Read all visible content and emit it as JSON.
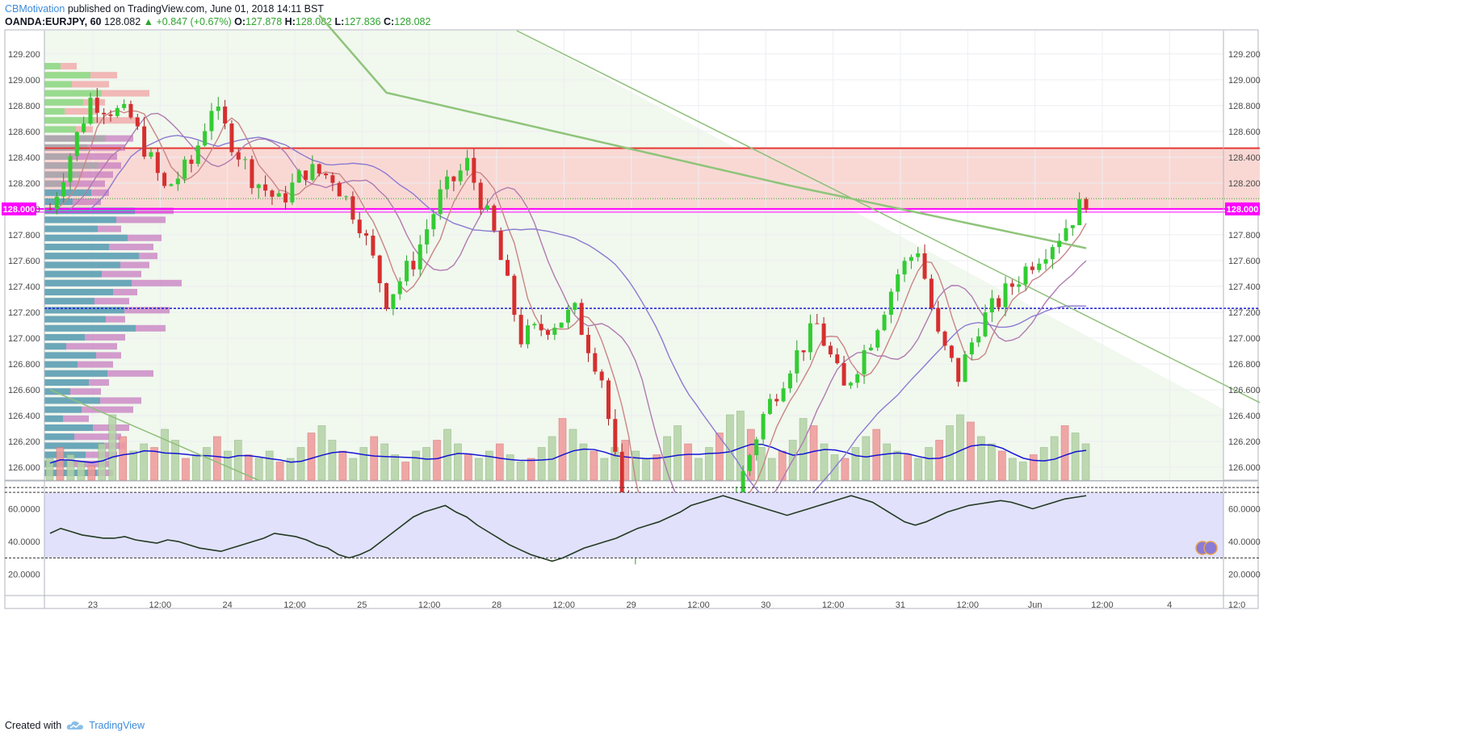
{
  "header": {
    "author": "CBMotivation",
    "published_text": "published on TradingView.com, June 01, 2018 14:11 BST"
  },
  "symbol": {
    "name": "OANDA:EURJPY, 60",
    "last": "128.082",
    "change": "+0.847 (+0.67%)",
    "o_label": "O:",
    "o_value": "127.878",
    "h_label": "H:",
    "h_value": "128.082",
    "l_label": "L:",
    "l_value": "127.836",
    "c_label": "C:",
    "c_value": "128.082"
  },
  "footer": {
    "created_with": "Created with",
    "brand": "TradingView"
  },
  "colors": {
    "up": "#33cc33",
    "down": "#d62f2f",
    "resistance_zone": "#f9d8d4",
    "resistance_line": "#e53935",
    "price_level_line": "#ff00ff",
    "support_line": "#1a1ad6",
    "trend_line": "#8fbf7a",
    "rsi_band": "#e1e1fb",
    "volume_ma": "#1414d6"
  },
  "chart_data": [
    {
      "type": "candlestick",
      "symbol": "OANDA:EURJPY",
      "interval": "60",
      "x_ticks": [
        "23",
        "12:00",
        "24",
        "12:00",
        "25",
        "12:00",
        "28",
        "12:00",
        "29",
        "12:00",
        "30",
        "12:00",
        "31",
        "12:00",
        "Jun",
        "12:00",
        "4",
        "12:0"
      ],
      "y_ticks": [
        "129.200",
        "129.000",
        "128.800",
        "128.600",
        "128.400",
        "128.200",
        "128.000",
        "127.800",
        "127.600",
        "127.400",
        "127.200",
        "127.000",
        "126.800",
        "126.600",
        "126.400",
        "126.200",
        "126.000"
      ],
      "ylim": [
        125.9,
        129.38
      ],
      "price_label": "128.000",
      "levels": {
        "resistance_zone": [
          128.0,
          128.47
        ],
        "resistance": 128.47,
        "marked_price": 128.0,
        "support": 127.23,
        "last_dotted": 128.08
      },
      "grid": true,
      "ohlc_keypoints": [
        {
          "x": 0,
          "y": 128.0
        },
        {
          "x": 6,
          "y": 128.85
        },
        {
          "x": 12,
          "y": 128.7
        },
        {
          "x": 17,
          "y": 128.15
        },
        {
          "x": 21,
          "y": 128.35
        },
        {
          "x": 24,
          "y": 128.8
        },
        {
          "x": 30,
          "y": 128.25
        },
        {
          "x": 34,
          "y": 128.05
        },
        {
          "x": 38,
          "y": 128.3
        },
        {
          "x": 42,
          "y": 128.25
        },
        {
          "x": 46,
          "y": 127.9
        },
        {
          "x": 50,
          "y": 127.3
        },
        {
          "x": 54,
          "y": 127.6
        },
        {
          "x": 58,
          "y": 128.1
        },
        {
          "x": 62,
          "y": 128.35
        },
        {
          "x": 66,
          "y": 127.8
        },
        {
          "x": 70,
          "y": 127.0
        },
        {
          "x": 74,
          "y": 127.1
        },
        {
          "x": 78,
          "y": 127.2
        },
        {
          "x": 82,
          "y": 126.7
        },
        {
          "x": 86,
          "y": 125.4
        },
        {
          "x": 90,
          "y": 125.5
        },
        {
          "x": 94,
          "y": 125.7
        },
        {
          "x": 98,
          "y": 125.6
        },
        {
          "x": 102,
          "y": 125.8
        },
        {
          "x": 106,
          "y": 126.4
        },
        {
          "x": 110,
          "y": 126.8
        },
        {
          "x": 114,
          "y": 127.1
        },
        {
          "x": 118,
          "y": 126.6
        },
        {
          "x": 122,
          "y": 127.0
        },
        {
          "x": 126,
          "y": 127.5
        },
        {
          "x": 129,
          "y": 127.7
        },
        {
          "x": 132,
          "y": 127.0
        },
        {
          "x": 135,
          "y": 126.7
        },
        {
          "x": 138,
          "y": 127.1
        },
        {
          "x": 142,
          "y": 127.35
        },
        {
          "x": 146,
          "y": 127.6
        },
        {
          "x": 150,
          "y": 127.8
        },
        {
          "x": 154,
          "y": 128.08
        }
      ]
    },
    {
      "type": "line",
      "name": "RSI",
      "y_ticks": [
        "60.0000",
        "40.0000",
        "20.0000"
      ],
      "ylim": [
        7,
        76
      ],
      "band": [
        30,
        70
      ],
      "values": [
        45,
        48,
        46,
        44,
        43,
        42,
        42,
        43,
        41,
        40,
        39,
        41,
        40,
        38,
        36,
        35,
        34,
        36,
        38,
        40,
        42,
        45,
        44,
        43,
        41,
        38,
        36,
        32,
        30,
        32,
        35,
        40,
        45,
        50,
        55,
        58,
        60,
        62,
        58,
        55,
        50,
        46,
        42,
        38,
        35,
        32,
        30,
        28,
        30,
        33,
        36,
        38,
        40,
        42,
        45,
        48,
        50,
        52,
        55,
        58,
        62,
        64,
        66,
        68,
        66,
        64,
        62,
        60,
        58,
        56,
        58,
        60,
        62,
        64,
        66,
        68,
        66,
        64,
        60,
        56,
        52,
        50,
        52,
        55,
        58,
        60,
        62,
        63,
        64,
        65,
        64,
        62,
        60,
        62,
        64,
        66,
        67,
        68
      ]
    },
    {
      "type": "bar",
      "name": "Volume",
      "values": [
        6,
        9,
        7,
        5,
        4,
        10,
        18,
        12,
        8,
        10,
        9,
        14,
        11,
        6,
        7,
        9,
        12,
        8,
        11,
        7,
        6,
        8,
        5,
        6,
        9,
        13,
        15,
        11,
        8,
        6,
        9,
        12,
        10,
        7,
        5,
        8,
        9,
        11,
        14,
        10,
        7,
        6,
        8,
        10,
        7,
        5,
        6,
        9,
        12,
        17,
        14,
        10,
        8,
        6,
        9,
        11,
        8,
        6,
        7,
        12,
        15,
        10,
        6,
        9,
        13,
        18,
        19,
        14,
        9,
        6,
        8,
        11,
        17,
        15,
        10,
        7,
        6,
        9,
        12,
        14,
        10,
        8,
        7,
        6,
        9,
        11,
        15,
        18,
        16,
        12,
        10,
        8,
        6,
        5,
        7,
        9,
        12,
        15,
        13,
        10
      ]
    }
  ]
}
